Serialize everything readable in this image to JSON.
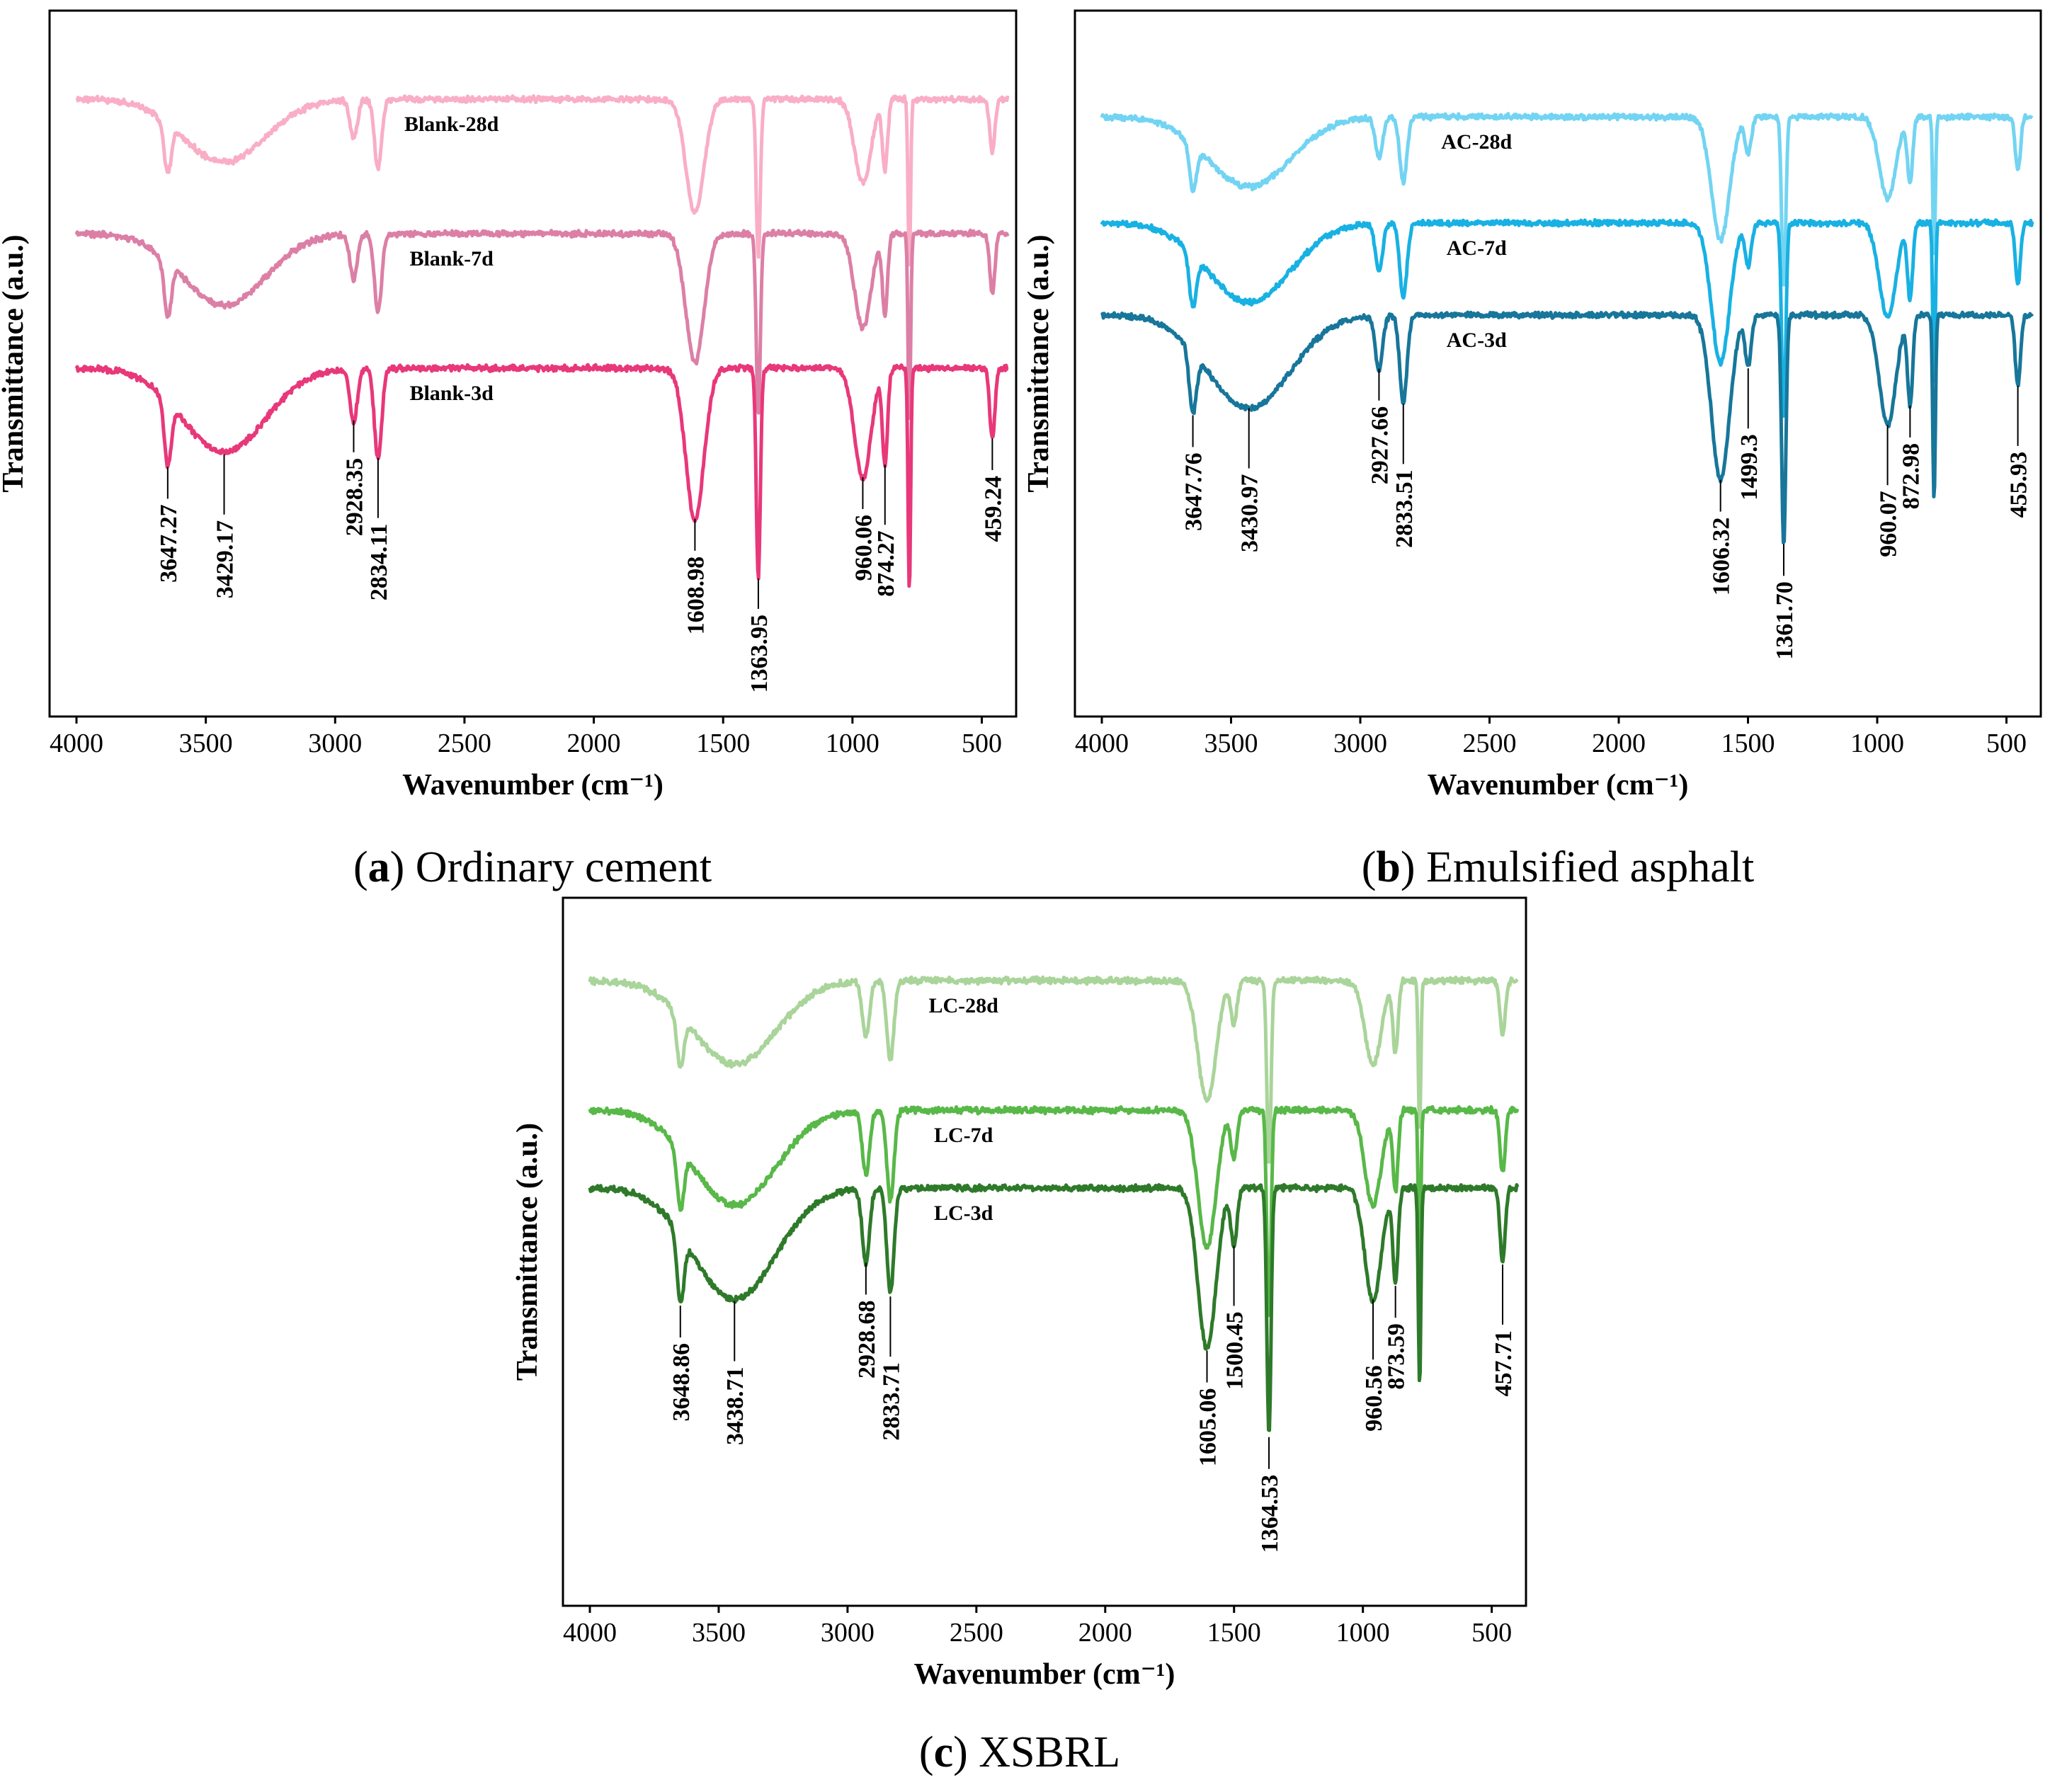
{
  "chart_data": [
    {
      "type": "line",
      "panel": "a",
      "caption_letter": "a",
      "caption_text": "Ordinary cement",
      "xlabel": "Wavenumber (cm⁻¹)",
      "ylabel": "Transmittance (a.u.)",
      "xlim": [
        4000,
        400
      ],
      "xticks": [
        4000,
        3500,
        3000,
        2500,
        2000,
        1500,
        1000,
        500
      ],
      "series": [
        {
          "name": "Blank-28d",
          "color": "#f9aec6",
          "offset": 0
        },
        {
          "name": "Blank-7d",
          "color": "#dc7fa6",
          "offset": 1
        },
        {
          "name": "Blank-3d",
          "color": "#e8387a",
          "offset": 2
        }
      ],
      "peaks": [
        {
          "x": 3647.27,
          "label": "3647.27",
          "depth": 0.55,
          "width": 14
        },
        {
          "x": 3429.17,
          "label": "3429.17",
          "depth": 0.72,
          "width": 160
        },
        {
          "x": 2928.35,
          "label": "2928.35",
          "depth": 0.45,
          "width": 14
        },
        {
          "x": 2834.11,
          "label": "2834.11",
          "depth": 0.78,
          "width": 14
        },
        {
          "x": 1608.98,
          "label": "1608.98",
          "depth": 1.3,
          "width": 35
        },
        {
          "x": 1363.95,
          "label": "1363.95",
          "depth": 1.8,
          "width": 8
        },
        {
          "x": 960.06,
          "label": "960.06",
          "depth": 0.95,
          "width": 32
        },
        {
          "x": 874.27,
          "label": "874.27",
          "depth": 0.8,
          "width": 10
        },
        {
          "x": 459.24,
          "label": "459.24",
          "depth": 0.6,
          "width": 10
        }
      ],
      "unlabeled_peaks": [
        {
          "x": 780,
          "depth": 1.9,
          "width": 5
        }
      ]
    },
    {
      "type": "line",
      "panel": "b",
      "caption_letter": "b",
      "caption_text": "Emulsified asphalt",
      "xlabel": "Wavenumber (cm⁻¹)",
      "ylabel": "Transmittance (a.u.)",
      "xlim": [
        4000,
        400
      ],
      "xticks": [
        4000,
        3500,
        3000,
        2500,
        2000,
        1500,
        1000,
        500
      ],
      "series": [
        {
          "name": "AC-28d",
          "color": "#72d4f2",
          "offset": 0
        },
        {
          "name": "AC-7d",
          "color": "#18b1e3",
          "offset": 1
        },
        {
          "name": "AC-3d",
          "color": "#17769a",
          "offset": 2
        }
      ],
      "peaks": [
        {
          "x": 3647.76,
          "label": "3647.76",
          "depth": 0.55,
          "width": 14
        },
        {
          "x": 3430.97,
          "label": "3430.97",
          "depth": 0.85,
          "width": 160
        },
        {
          "x": 2927.66,
          "label": "2927.66",
          "depth": 0.5,
          "width": 14
        },
        {
          "x": 2833.51,
          "label": "2833.51",
          "depth": 0.8,
          "width": 14
        },
        {
          "x": 1606.32,
          "label": "1606.32",
          "depth": 1.5,
          "width": 35
        },
        {
          "x": 1499.3,
          "label": "1499.3",
          "depth": 0.45,
          "width": 12
        },
        {
          "x": 1361.7,
          "label": "1361.70",
          "depth": 2.1,
          "width": 8
        },
        {
          "x": 960.07,
          "label": "960.07",
          "depth": 1.0,
          "width": 32
        },
        {
          "x": 872.98,
          "label": "872.98",
          "depth": 0.8,
          "width": 10
        },
        {
          "x": 455.93,
          "label": "455.93",
          "depth": 0.65,
          "width": 10
        }
      ],
      "unlabeled_peaks": [
        {
          "x": 780,
          "depth": 1.7,
          "width": 5
        }
      ]
    },
    {
      "type": "line",
      "panel": "c",
      "caption_letter": "c",
      "caption_text": "XSBRL",
      "xlabel": "Wavenumber (cm⁻¹)",
      "ylabel": "Transmittance (a.u.)",
      "xlim": [
        4000,
        400
      ],
      "xticks": [
        4000,
        3500,
        3000,
        2500,
        2000,
        1500,
        1000,
        500
      ],
      "series": [
        {
          "name": "LC-28d",
          "color": "#a9d49a",
          "offset": 0
        },
        {
          "name": "LC-7d",
          "color": "#58b848",
          "offset": 1
        },
        {
          "name": "LC-3d",
          "color": "#2e7a2a",
          "offset": 2
        }
      ],
      "peaks": [
        {
          "x": 3648.86,
          "label": "3648.86",
          "depth": 0.55,
          "width": 14
        },
        {
          "x": 3438.71,
          "label": "3438.71",
          "depth": 0.9,
          "width": 160
        },
        {
          "x": 2928.68,
          "label": "2928.68",
          "depth": 0.6,
          "width": 14
        },
        {
          "x": 2833.71,
          "label": "2833.71",
          "depth": 0.85,
          "width": 14
        },
        {
          "x": 1605.06,
          "label": "1605.06",
          "depth": 1.3,
          "width": 35
        },
        {
          "x": 1500.45,
          "label": "1500.45",
          "depth": 0.45,
          "width": 12
        },
        {
          "x": 1364.53,
          "label": "1364.53",
          "depth": 2.0,
          "width": 8
        },
        {
          "x": 960.56,
          "label": "960.56",
          "depth": 0.9,
          "width": 32
        },
        {
          "x": 873.59,
          "label": "873.59",
          "depth": 0.75,
          "width": 10
        },
        {
          "x": 457.71,
          "label": "457.71",
          "depth": 0.6,
          "width": 10
        }
      ],
      "unlabeled_peaks": [
        {
          "x": 780,
          "depth": 1.6,
          "width": 5
        }
      ]
    }
  ]
}
